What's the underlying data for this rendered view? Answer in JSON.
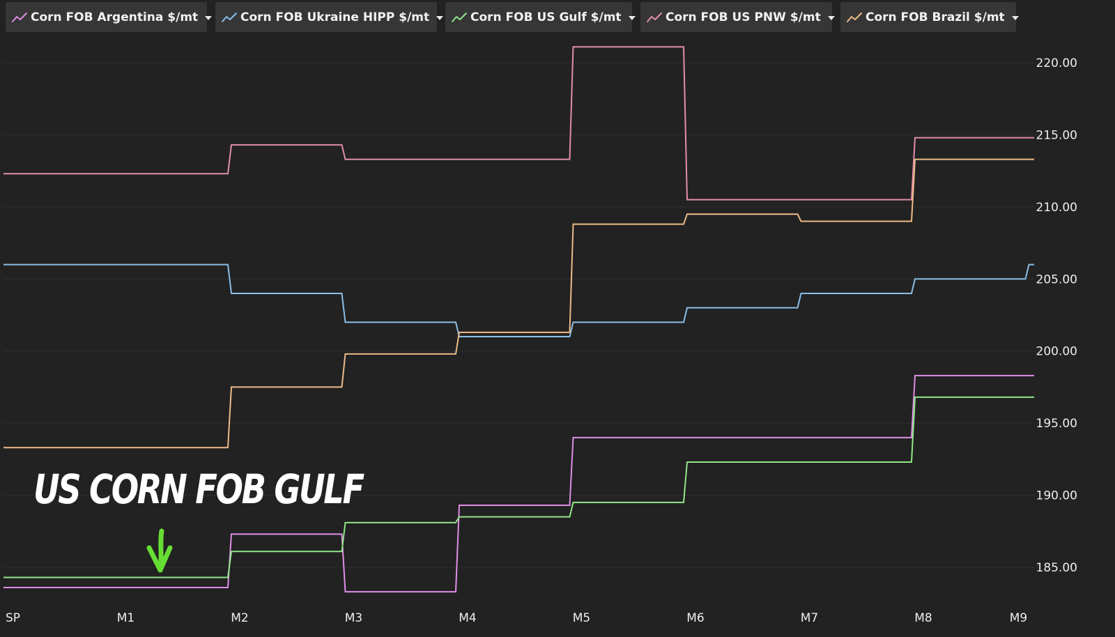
{
  "chart_data": {
    "type": "line",
    "line_style": "step",
    "x": [
      "SP",
      "M1",
      "M2",
      "M3",
      "M4",
      "M5",
      "M6",
      "M7",
      "M8",
      "M9"
    ],
    "categories": [
      "SP",
      "M1",
      "M2",
      "M3",
      "M4",
      "M5",
      "M6",
      "M7",
      "M8",
      "M9"
    ],
    "series": [
      {
        "name": "Corn FOB Argentina $/mt",
        "color": "#e08ee8",
        "values": [
          183.6,
          183.6,
          187.3,
          183.3,
          189.3,
          194.0,
          194.0,
          194.0,
          198.3,
          198.3
        ]
      },
      {
        "name": "Corn FOB Ukraine HIPP $/mt",
        "color": "#8cbfe8",
        "values": [
          206.0,
          206.0,
          204.0,
          202.0,
          201.0,
          202.0,
          203.0,
          204.0,
          205.0,
          206.0
        ]
      },
      {
        "name": "Corn FOB US Gulf $/mt",
        "color": "#90e888",
        "values": [
          184.3,
          184.3,
          186.1,
          188.1,
          188.5,
          189.5,
          192.3,
          192.3,
          196.8,
          196.8
        ]
      },
      {
        "name": "Corn FOB US PNW $/mt",
        "color": "#e28fa8",
        "values": [
          212.3,
          212.3,
          214.3,
          213.3,
          213.3,
          221.1,
          210.5,
          210.5,
          214.8,
          214.8
        ]
      },
      {
        "name": "Corn FOB Brazil $/mt",
        "color": "#eebb88",
        "values": [
          193.3,
          193.3,
          197.5,
          199.8,
          201.3,
          208.8,
          209.5,
          209.0,
          213.3,
          213.3
        ]
      }
    ],
    "yticks": [
      "185.00",
      "190.00",
      "195.00",
      "200.00",
      "205.00",
      "210.00",
      "215.00",
      "220.00"
    ],
    "ylim": [
      182.5,
      222.5
    ],
    "grid": true,
    "legend_position": "top",
    "title": "",
    "xlabel": "",
    "ylabel": "",
    "annotation": "US CORN FOB GULF",
    "annotation_color": "#ffffff",
    "arrow_color": "#66dd33",
    "background": "#222222"
  }
}
